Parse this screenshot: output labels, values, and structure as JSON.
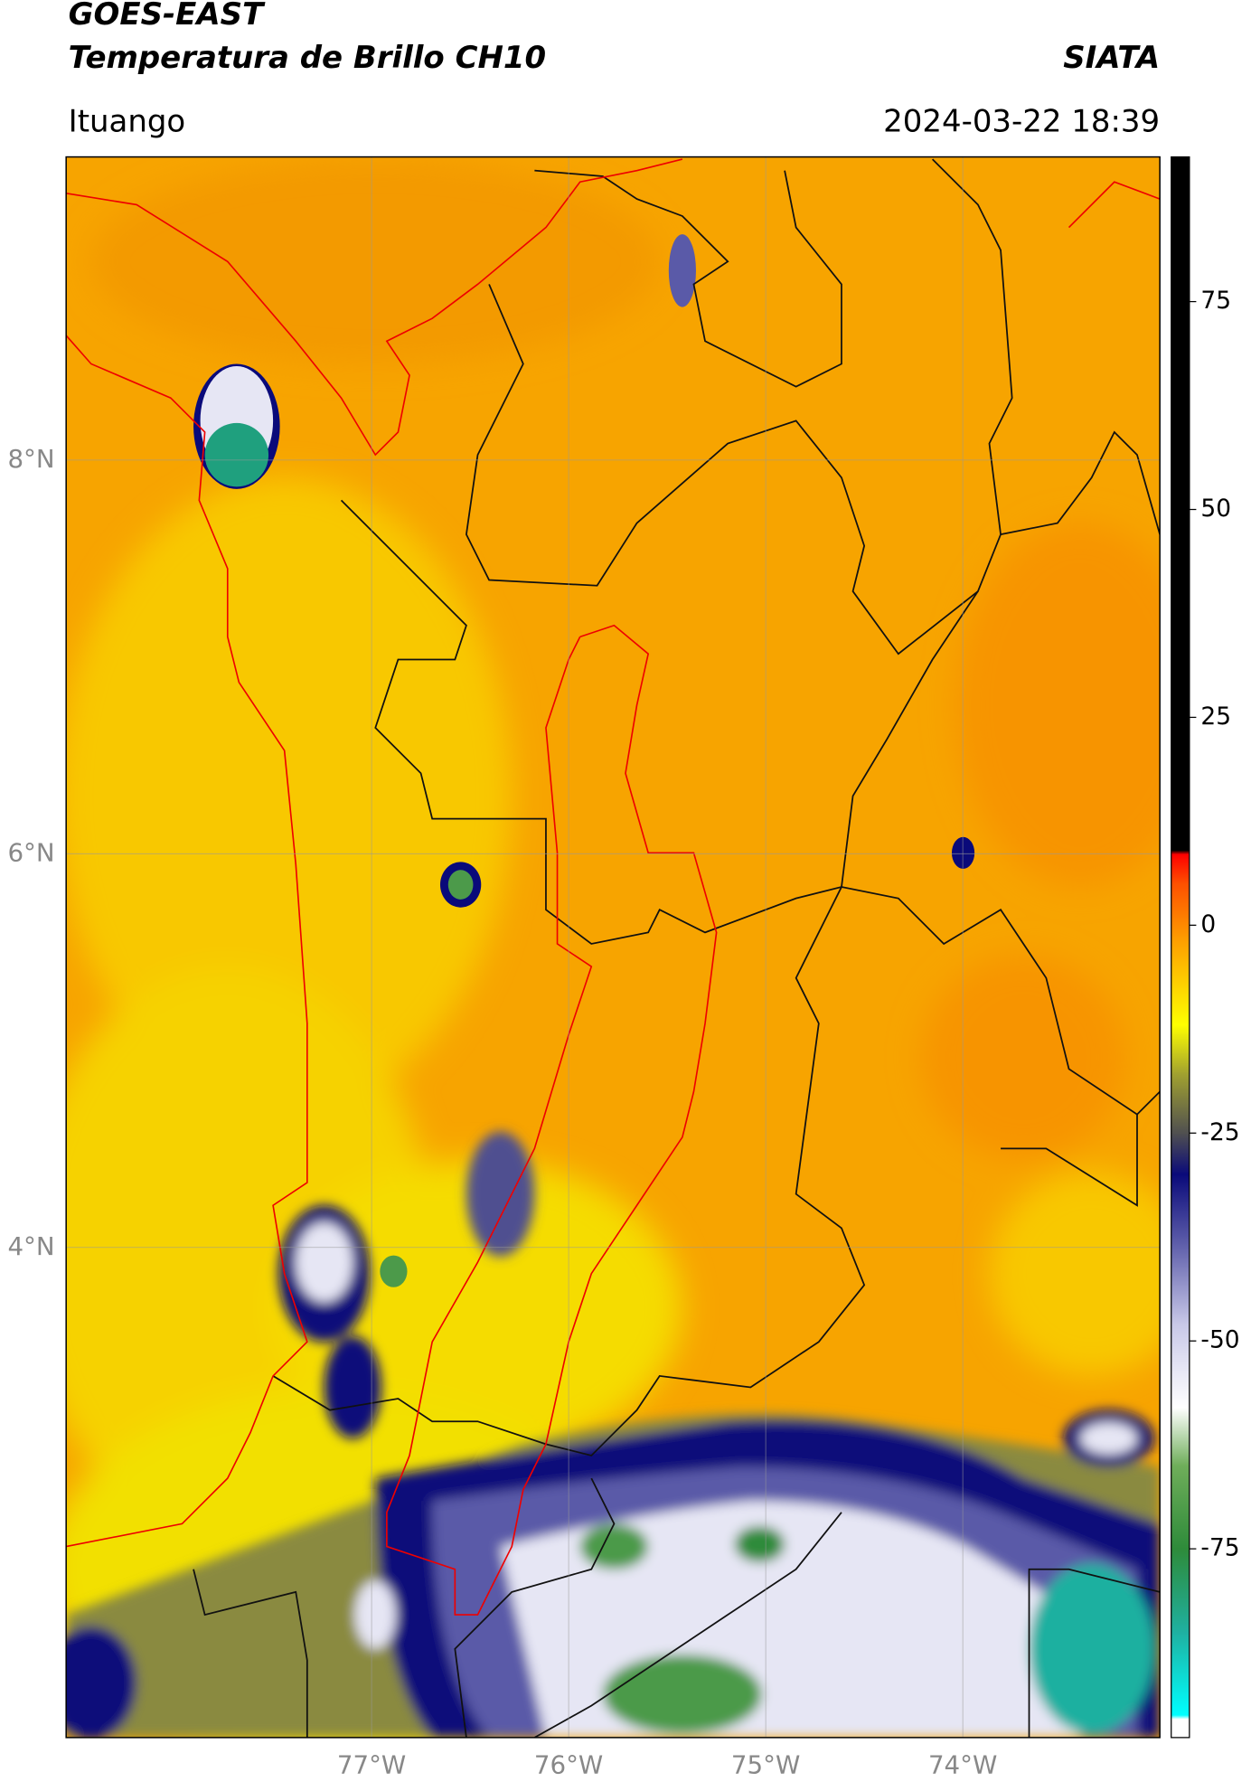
{
  "header": {
    "title": "GOES-EAST",
    "subtitle": "Temperatura de Brillo CH10",
    "source": "SIATA",
    "location": "Ituango",
    "datetime": "2024-03-22 18:39"
  },
  "map": {
    "lon_range": [
      -78.55,
      -73.0
    ],
    "lat_range": [
      1.51,
      9.54
    ],
    "lat_ticks": [
      {
        "value": 8,
        "label": "8°N"
      },
      {
        "value": 6,
        "label": "6°N"
      },
      {
        "value": 4,
        "label": "4°N"
      }
    ],
    "lon_ticks": [
      {
        "value": -77,
        "label": "77°W"
      },
      {
        "value": -76,
        "label": "76°W"
      },
      {
        "value": -75,
        "label": "75°W"
      },
      {
        "value": -74,
        "label": "74°W"
      }
    ],
    "grid": true
  },
  "colorbar": {
    "range": [
      -97.7,
      92.4
    ],
    "ticks": [
      75,
      50,
      25,
      0,
      -25,
      -50,
      -75
    ],
    "stops": [
      {
        "value": -97.7,
        "color": "#ffffff"
      },
      {
        "value": -95.5,
        "color": "#ffffff"
      },
      {
        "value": -95,
        "color": "#00ffff"
      },
      {
        "value": -85,
        "color": "#1fb0a0"
      },
      {
        "value": -75,
        "color": "#2e8b3a"
      },
      {
        "value": -65,
        "color": "#6fae5a"
      },
      {
        "value": -58,
        "color": "#ffffff"
      },
      {
        "value": -48,
        "color": "#c8c8e8"
      },
      {
        "value": -38,
        "color": "#5a5aa8"
      },
      {
        "value": -30,
        "color": "#0a0a7a"
      },
      {
        "value": -25,
        "color": "#505050"
      },
      {
        "value": -18,
        "color": "#a0a030"
      },
      {
        "value": -12,
        "color": "#ffff00"
      },
      {
        "value": -2,
        "color": "#ffa000"
      },
      {
        "value": 5,
        "color": "#ff5000"
      },
      {
        "value": 8.5,
        "color": "#ff0000"
      },
      {
        "value": 9,
        "color": "#000000"
      },
      {
        "value": 92.4,
        "color": "#000000"
      }
    ]
  }
}
